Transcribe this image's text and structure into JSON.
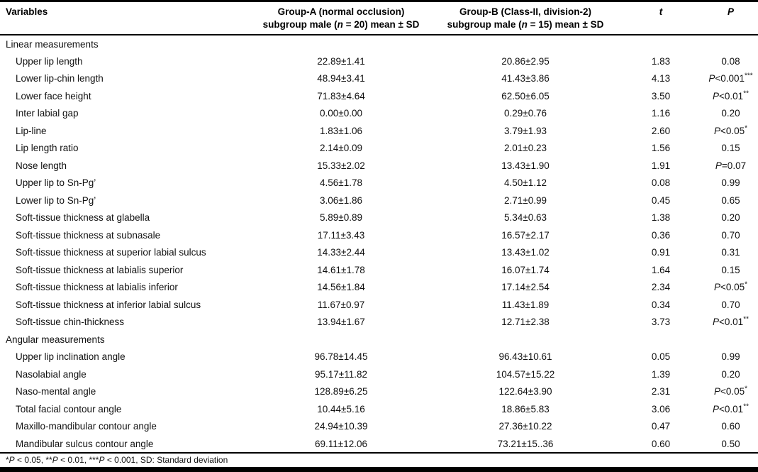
{
  "header": {
    "variables": "Variables",
    "group_a_line1": "Group-A (normal occlusion)",
    "group_a_line2": "subgroup male (n = 20) mean ± SD",
    "group_b_line1": "Group-B (Class-II, division-2)",
    "group_b_line2": "subgroup male (n = 15) mean ± SD",
    "t": "t",
    "p": "P"
  },
  "sections": [
    {
      "title": "Linear measurements",
      "rows": [
        {
          "variable": "Upper lip length",
          "group_a": "22.89±1.41",
          "group_b": "20.86±2.95",
          "t": "1.83",
          "p": "0.08"
        },
        {
          "variable": "Lower lip-chin length",
          "group_a": "48.94±3.41",
          "group_b": "41.43±3.86",
          "t": "4.13",
          "p": "P<0.001***"
        },
        {
          "variable": "Lower face height",
          "group_a": "71.83±4.64",
          "group_b": "62.50±6.05",
          "t": "3.50",
          "p": "P<0.01**"
        },
        {
          "variable": "Inter labial gap",
          "group_a": "0.00±0.00",
          "group_b": "0.29±0.76",
          "t": "1.16",
          "p": "0.20"
        },
        {
          "variable": "Lip-line",
          "group_a": "1.83±1.06",
          "group_b": "3.79±1.93",
          "t": "2.60",
          "p": "P<0.05*"
        },
        {
          "variable": "Lip length ratio",
          "group_a": "2.14±0.09",
          "group_b": "2.01±0.23",
          "t": "1.56",
          "p": "0.15"
        },
        {
          "variable": "Nose length",
          "group_a": "15.33±2.02",
          "group_b": "13.43±1.90",
          "t": "1.91",
          "p": "P=0.07"
        },
        {
          "variable": "Upper lip to Sn-Pg’",
          "group_a": "4.56±1.78",
          "group_b": "4.50±1.12",
          "t": "0.08",
          "p": "0.99"
        },
        {
          "variable": "Lower lip to Sn-Pg’",
          "group_a": "3.06±1.86",
          "group_b": "2.71±0.99",
          "t": "0.45",
          "p": "0.65"
        },
        {
          "variable": "Soft-tissue thickness at glabella",
          "group_a": "5.89±0.89",
          "group_b": "5.34±0.63",
          "t": "1.38",
          "p": "0.20"
        },
        {
          "variable": "Soft-tissue thickness at subnasale",
          "group_a": "17.11±3.43",
          "group_b": "16.57±2.17",
          "t": "0.36",
          "p": "0.70"
        },
        {
          "variable": "Soft-tissue thickness at superior labial sulcus",
          "group_a": "14.33±2.44",
          "group_b": "13.43±1.02",
          "t": "0.91",
          "p": "0.31"
        },
        {
          "variable": "Soft-tissue thickness at labialis superior",
          "group_a": "14.61±1.78",
          "group_b": "16.07±1.74",
          "t": "1.64",
          "p": "0.15"
        },
        {
          "variable": "Soft-tissue thickness at labialis inferior",
          "group_a": "14.56±1.84",
          "group_b": "17.14±2.54",
          "t": "2.34",
          "p": "P<0.05*"
        },
        {
          "variable": "Soft-tissue thickness at inferior labial sulcus",
          "group_a": "11.67±0.97",
          "group_b": "11.43±1.89",
          "t": "0.34",
          "p": "0.70"
        },
        {
          "variable": "Soft-tissue chin-thickness",
          "group_a": "13.94±1.67",
          "group_b": "12.71±2.38",
          "t": "3.73",
          "p": "P<0.01**"
        }
      ]
    },
    {
      "title": "Angular measurements",
      "rows": [
        {
          "variable": "Upper lip inclination angle",
          "group_a": "96.78±14.45",
          "group_b": "96.43±10.61",
          "t": "0.05",
          "p": "0.99"
        },
        {
          "variable": "Nasolabial angle",
          "group_a": "95.17±11.82",
          "group_b": "104.57±15.22",
          "t": "1.39",
          "p": "0.20"
        },
        {
          "variable": "Naso-mental angle",
          "group_a": "128.89±6.25",
          "group_b": "122.64±3.90",
          "t": "2.31",
          "p": "P<0.05*"
        },
        {
          "variable": "Total facial contour angle",
          "group_a": "10.44±5.16",
          "group_b": "18.86±5.83",
          "t": "3.06",
          "p": "P<0.01**"
        },
        {
          "variable": "Maxillo-mandibular contour angle",
          "group_a": "24.94±10.39",
          "group_b": "27.36±10.22",
          "t": "0.47",
          "p": "0.60"
        },
        {
          "variable": "Mandibular sulcus contour angle",
          "group_a": "69.11±12.06",
          "group_b": "73.21±15..36",
          "t": "0.60",
          "p": "0.50"
        }
      ]
    }
  ],
  "footnote": "*P < 0.05, **P < 0.01, ***P < 0.001, SD: Standard deviation",
  "colors": {
    "background": "#ffffff",
    "text": "#111111",
    "rule": "#000000"
  }
}
